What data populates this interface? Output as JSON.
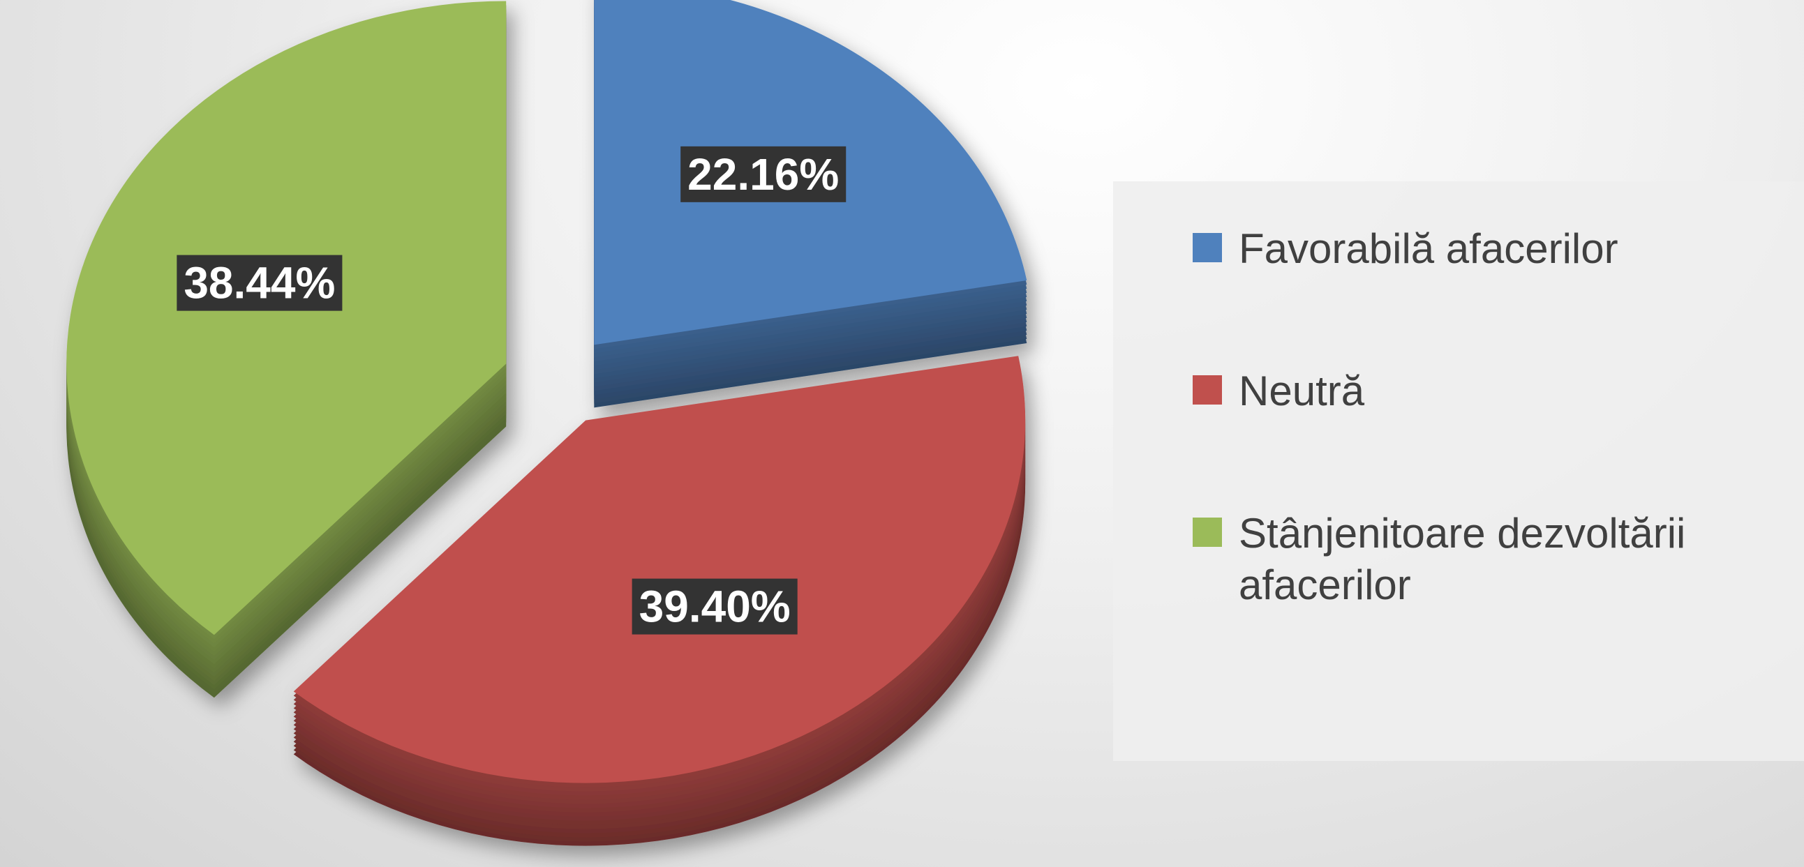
{
  "chart_data": {
    "type": "pie",
    "categories": [
      "Favorabilă afacerilor",
      "Neutră",
      "Stânjenitoare dezvoltării afacerilor"
    ],
    "values": [
      22.16,
      39.4,
      38.44
    ],
    "value_labels": [
      "22.16%",
      "39.40%",
      "38.44%"
    ],
    "colors": [
      "#4f81bd",
      "#c0504d",
      "#9bbb59"
    ],
    "legend": "right"
  }
}
